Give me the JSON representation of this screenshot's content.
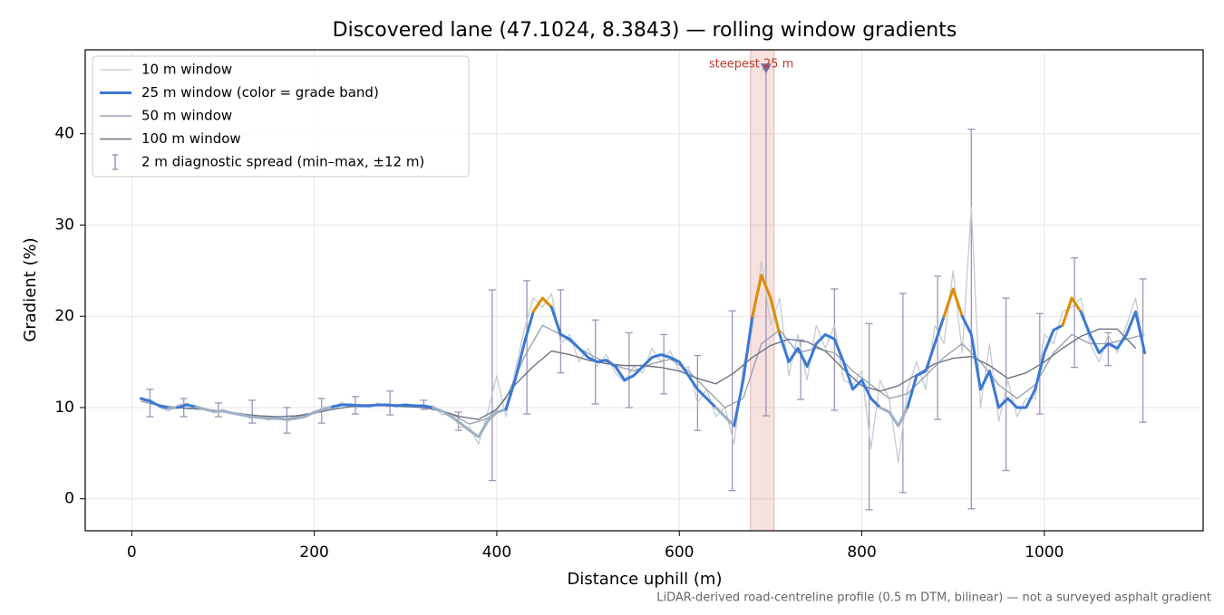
{
  "chart_data": {
    "type": "line",
    "title": "Discovered lane (47.1024, 8.3843) — rolling window gradients",
    "xlabel": "Distance uphill (m)",
    "ylabel": "Gradient (%)",
    "footnote": "LiDAR-derived road-centreline profile (0.5 m DTM, bilinear) — not a surveyed asphalt gradient",
    "xlim": [
      -51,
      1174
    ],
    "ylim": [
      -3.5,
      49.2
    ],
    "xticks": [
      0,
      200,
      400,
      600,
      800,
      1000
    ],
    "yticks": [
      0,
      10,
      20,
      30,
      40
    ],
    "grid": true,
    "legend": "upper left",
    "series": [
      {
        "name": "10 m window",
        "color": "#c5cad3",
        "width": 1.3,
        "x": [
          10,
          20,
          30,
          40,
          50,
          60,
          70,
          80,
          90,
          100,
          110,
          120,
          130,
          140,
          150,
          160,
          170,
          180,
          190,
          200,
          210,
          220,
          230,
          240,
          250,
          260,
          270,
          280,
          290,
          300,
          310,
          320,
          330,
          340,
          350,
          360,
          370,
          380,
          390,
          400,
          410,
          420,
          430,
          440,
          450,
          460,
          470,
          480,
          490,
          500,
          510,
          520,
          530,
          540,
          550,
          560,
          570,
          580,
          590,
          600,
          610,
          620,
          630,
          640,
          650,
          660,
          670,
          680,
          690,
          700,
          710,
          720,
          730,
          740,
          750,
          760,
          770,
          780,
          790,
          800,
          810,
          820,
          830,
          840,
          850,
          860,
          870,
          880,
          890,
          900,
          910,
          920,
          930,
          940,
          950,
          960,
          970,
          980,
          990,
          1000,
          1010,
          1020,
          1030,
          1040,
          1050,
          1060,
          1070,
          1080,
          1090,
          1100,
          1110
        ],
        "values": [
          10.6,
          11,
          10,
          9.6,
          10.3,
          10.5,
          9.9,
          9.9,
          9.4,
          9.8,
          9.3,
          9.4,
          8.8,
          9,
          8.6,
          9,
          8.5,
          8.9,
          9.3,
          9.3,
          10.1,
          9.9,
          10.6,
          10.1,
          10.4,
          10,
          10.5,
          10.1,
          10.4,
          10.1,
          10.3,
          10,
          10.2,
          9.2,
          9.4,
          7.8,
          7.9,
          6,
          9.5,
          13.5,
          9,
          14,
          18.5,
          22,
          21,
          22.5,
          17,
          18,
          15,
          16.5,
          14.5,
          15.8,
          13.8,
          12.8,
          14.5,
          13.8,
          16.5,
          15,
          16.2,
          14,
          14.5,
          10.5,
          12,
          9,
          10,
          6,
          14.5,
          18.5,
          26,
          19,
          22,
          13.5,
          18,
          13,
          19,
          16.5,
          19,
          13,
          12.5,
          14,
          5.5,
          13,
          11,
          4,
          12,
          15,
          12,
          19,
          17,
          25,
          16,
          32,
          10,
          17,
          8.5,
          13,
          9,
          11,
          11,
          18,
          17,
          20.5,
          21,
          22,
          17,
          15,
          18,
          16,
          19,
          22,
          16
        ]
      },
      {
        "name": "25 m window (color = grade band)",
        "color": "#3a78d4",
        "width": 3,
        "band_breaks": [
          10,
          20
        ],
        "band_colors": [
          "#9fb0c4",
          "#3a78d4",
          "#e08a00"
        ],
        "x": [
          10,
          20,
          30,
          40,
          50,
          60,
          70,
          80,
          90,
          100,
          110,
          120,
          130,
          140,
          150,
          160,
          170,
          180,
          190,
          200,
          210,
          220,
          230,
          240,
          250,
          260,
          270,
          280,
          290,
          300,
          310,
          320,
          330,
          340,
          350,
          360,
          370,
          380,
          390,
          400,
          410,
          420,
          430,
          440,
          450,
          460,
          470,
          480,
          490,
          500,
          510,
          520,
          530,
          540,
          550,
          560,
          570,
          580,
          590,
          600,
          610,
          620,
          630,
          640,
          650,
          660,
          670,
          680,
          690,
          700,
          710,
          720,
          730,
          740,
          750,
          760,
          770,
          780,
          790,
          800,
          810,
          820,
          830,
          840,
          850,
          860,
          870,
          880,
          890,
          900,
          910,
          920,
          930,
          940,
          950,
          960,
          970,
          980,
          990,
          1000,
          1010,
          1020,
          1030,
          1040,
          1050,
          1060,
          1070,
          1080,
          1090,
          1100,
          1110
        ],
        "values": [
          11,
          10.7,
          10.2,
          9.9,
          10,
          10.3,
          10.1,
          9.8,
          9.6,
          9.6,
          9.4,
          9.2,
          9.0,
          8.9,
          8.8,
          8.8,
          8.7,
          8.8,
          9.0,
          9.5,
          9.8,
          10.1,
          10.3,
          10.3,
          10.2,
          10.2,
          10.3,
          10.3,
          10.2,
          10.3,
          10.2,
          10.2,
          10.0,
          9.6,
          9.0,
          8.3,
          7.5,
          6.8,
          8.5,
          9.5,
          9.8,
          13,
          17,
          20.5,
          22,
          21,
          18,
          17.5,
          16.5,
          15.5,
          15,
          15.2,
          14.5,
          13,
          13.5,
          14.5,
          15.5,
          15.8,
          15.5,
          15,
          13.5,
          12,
          11,
          10,
          9,
          8,
          13,
          20,
          24.5,
          22,
          18,
          15,
          16.5,
          14.5,
          17,
          18,
          17.5,
          15,
          12,
          13,
          11,
          10,
          9.5,
          8,
          10,
          13.5,
          14,
          17,
          20,
          23,
          20,
          18,
          12,
          14,
          10,
          11,
          10,
          10,
          12,
          16,
          18.5,
          19,
          22,
          20.5,
          18,
          16,
          17,
          16.5,
          18,
          20.5,
          16
        ]
      },
      {
        "name": "50 m window",
        "color": "#9aa3b1",
        "width": 1.4,
        "x": [
          10,
          30,
          50,
          70,
          90,
          110,
          130,
          150,
          170,
          190,
          210,
          230,
          250,
          270,
          290,
          310,
          330,
          350,
          370,
          390,
          410,
          430,
          450,
          470,
          490,
          510,
          530,
          550,
          570,
          590,
          610,
          630,
          650,
          670,
          690,
          710,
          730,
          750,
          770,
          790,
          810,
          830,
          850,
          870,
          890,
          910,
          930,
          950,
          970,
          990,
          1010,
          1030,
          1050,
          1070,
          1090,
          1110
        ],
        "values": [
          10.7,
          10.2,
          10.0,
          9.9,
          9.7,
          9.4,
          9.1,
          8.9,
          8.8,
          9.2,
          9.8,
          10.2,
          10.3,
          10.3,
          10.2,
          10.2,
          10.0,
          9.3,
          8.2,
          8.8,
          11,
          15.5,
          19,
          18,
          16.5,
          15.4,
          14.6,
          14,
          14.8,
          15.3,
          14,
          12,
          10,
          11,
          17,
          18.5,
          16,
          16.5,
          16,
          14,
          12.5,
          11,
          11.5,
          13.5,
          15.5,
          17,
          15,
          12.5,
          11,
          12.5,
          16,
          18,
          17,
          17,
          17.5,
          18
        ]
      },
      {
        "name": "100 m window",
        "color": "#6b7385",
        "width": 1.4,
        "x": [
          20,
          40,
          60,
          80,
          100,
          120,
          140,
          160,
          180,
          200,
          220,
          240,
          260,
          280,
          300,
          320,
          340,
          360,
          380,
          400,
          420,
          440,
          460,
          480,
          500,
          520,
          540,
          560,
          580,
          600,
          620,
          640,
          660,
          680,
          700,
          720,
          740,
          760,
          780,
          800,
          820,
          840,
          860,
          880,
          900,
          920,
          940,
          960,
          980,
          1000,
          1020,
          1040,
          1060,
          1080,
          1100
        ],
        "values": [
          10.5,
          10.1,
          9.9,
          9.8,
          9.6,
          9.3,
          9.1,
          9.0,
          9.1,
          9.4,
          9.8,
          10.1,
          10.2,
          10.2,
          10.1,
          10.0,
          9.6,
          9.0,
          8.7,
          9.8,
          12.5,
          14.5,
          16.2,
          15.8,
          15.2,
          14.8,
          14.6,
          14.6,
          14.4,
          14.0,
          13.2,
          12.6,
          13.8,
          15.5,
          16.8,
          17.5,
          17.2,
          16.2,
          14.2,
          12.4,
          11.8,
          12.4,
          13.6,
          14.8,
          15.4,
          15.6,
          14.6,
          13.2,
          13.8,
          15.0,
          16.5,
          17.8,
          18.6,
          18.6,
          16.5
        ]
      }
    ],
    "spread": {
      "name": "2 m diagnostic spread (min–max, ±12 m)",
      "color": "#9d94bb",
      "x": [
        20,
        57,
        95,
        132,
        170,
        208,
        245,
        283,
        320,
        358,
        395,
        433,
        470,
        508,
        545,
        583,
        620,
        658,
        695,
        733,
        770,
        808,
        845,
        883,
        920,
        958,
        995,
        1033,
        1070,
        1108
      ],
      "low": [
        9,
        9,
        9,
        8.3,
        7.2,
        8.3,
        9.3,
        9.2,
        9.8,
        7.5,
        2,
        9.3,
        13.8,
        10.4,
        10,
        11.5,
        7.5,
        0.9,
        9.1,
        10.9,
        9.7,
        -1.2,
        0.7,
        8.7,
        -1.1,
        3.1,
        9.3,
        14.4,
        14.6,
        8.4
      ],
      "high": [
        12,
        11,
        10.5,
        10.8,
        10,
        11,
        11.2,
        11.8,
        10.8,
        9.5,
        22.9,
        23.9,
        22.9,
        19.6,
        18.2,
        18,
        15.7,
        20.6,
        47.1,
        17.4,
        23,
        19.2,
        22.5,
        24.4,
        40.5,
        22,
        20.3,
        26.4,
        18.2,
        24.1
      ]
    },
    "steepest": {
      "label": "steepest 25 m",
      "x": 695,
      "y": 47.1,
      "span": [
        678,
        704
      ],
      "color": "#c0392b"
    }
  }
}
